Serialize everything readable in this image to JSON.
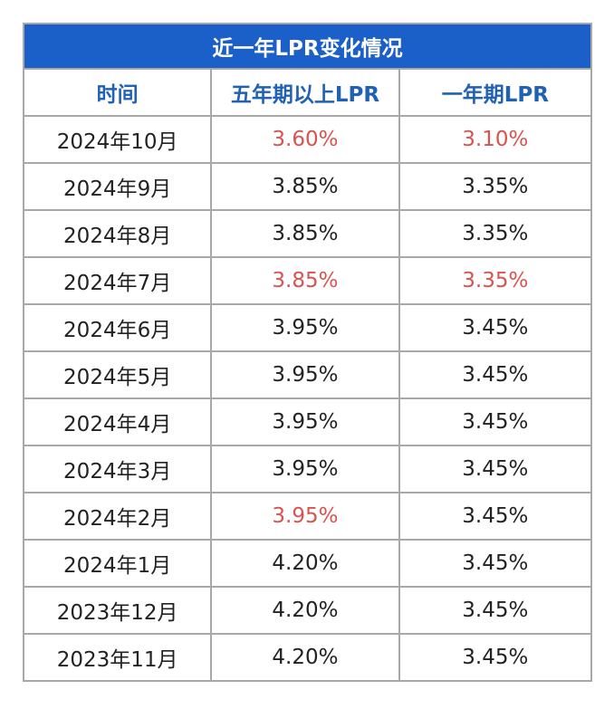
{
  "title": "近一年LPR变化情况",
  "headers": [
    "时间",
    "五年期以上LPR",
    "一年期LPR"
  ],
  "colors": {
    "title_bg": "#1b5fc9",
    "header_text": "#2161b5",
    "highlight": "#d9534f"
  },
  "rows": [
    {
      "date": "2024年10月",
      "five_year": "3.60%",
      "one_year": "3.10%",
      "highlight_five": true,
      "highlight_one": true
    },
    {
      "date": "2024年9月",
      "five_year": "3.85%",
      "one_year": "3.35%",
      "highlight_five": false,
      "highlight_one": false
    },
    {
      "date": "2024年8月",
      "five_year": "3.85%",
      "one_year": "3.35%",
      "highlight_five": false,
      "highlight_one": false
    },
    {
      "date": "2024年7月",
      "five_year": "3.85%",
      "one_year": "3.35%",
      "highlight_five": true,
      "highlight_one": true
    },
    {
      "date": "2024年6月",
      "five_year": "3.95%",
      "one_year": "3.45%",
      "highlight_five": false,
      "highlight_one": false
    },
    {
      "date": "2024年5月",
      "five_year": "3.95%",
      "one_year": "3.45%",
      "highlight_five": false,
      "highlight_one": false
    },
    {
      "date": "2024年4月",
      "five_year": "3.95%",
      "one_year": "3.45%",
      "highlight_five": false,
      "highlight_one": false
    },
    {
      "date": "2024年3月",
      "five_year": "3.95%",
      "one_year": "3.45%",
      "highlight_five": false,
      "highlight_one": false
    },
    {
      "date": "2024年2月",
      "five_year": "3.95%",
      "one_year": "3.45%",
      "highlight_five": true,
      "highlight_one": false
    },
    {
      "date": "2024年1月",
      "five_year": "4.20%",
      "one_year": "3.45%",
      "highlight_five": false,
      "highlight_one": false
    },
    {
      "date": "2023年12月",
      "five_year": "4.20%",
      "one_year": "3.45%",
      "highlight_five": false,
      "highlight_one": false
    },
    {
      "date": "2023年11月",
      "five_year": "4.20%",
      "one_year": "3.45%",
      "highlight_five": false,
      "highlight_one": false
    }
  ]
}
